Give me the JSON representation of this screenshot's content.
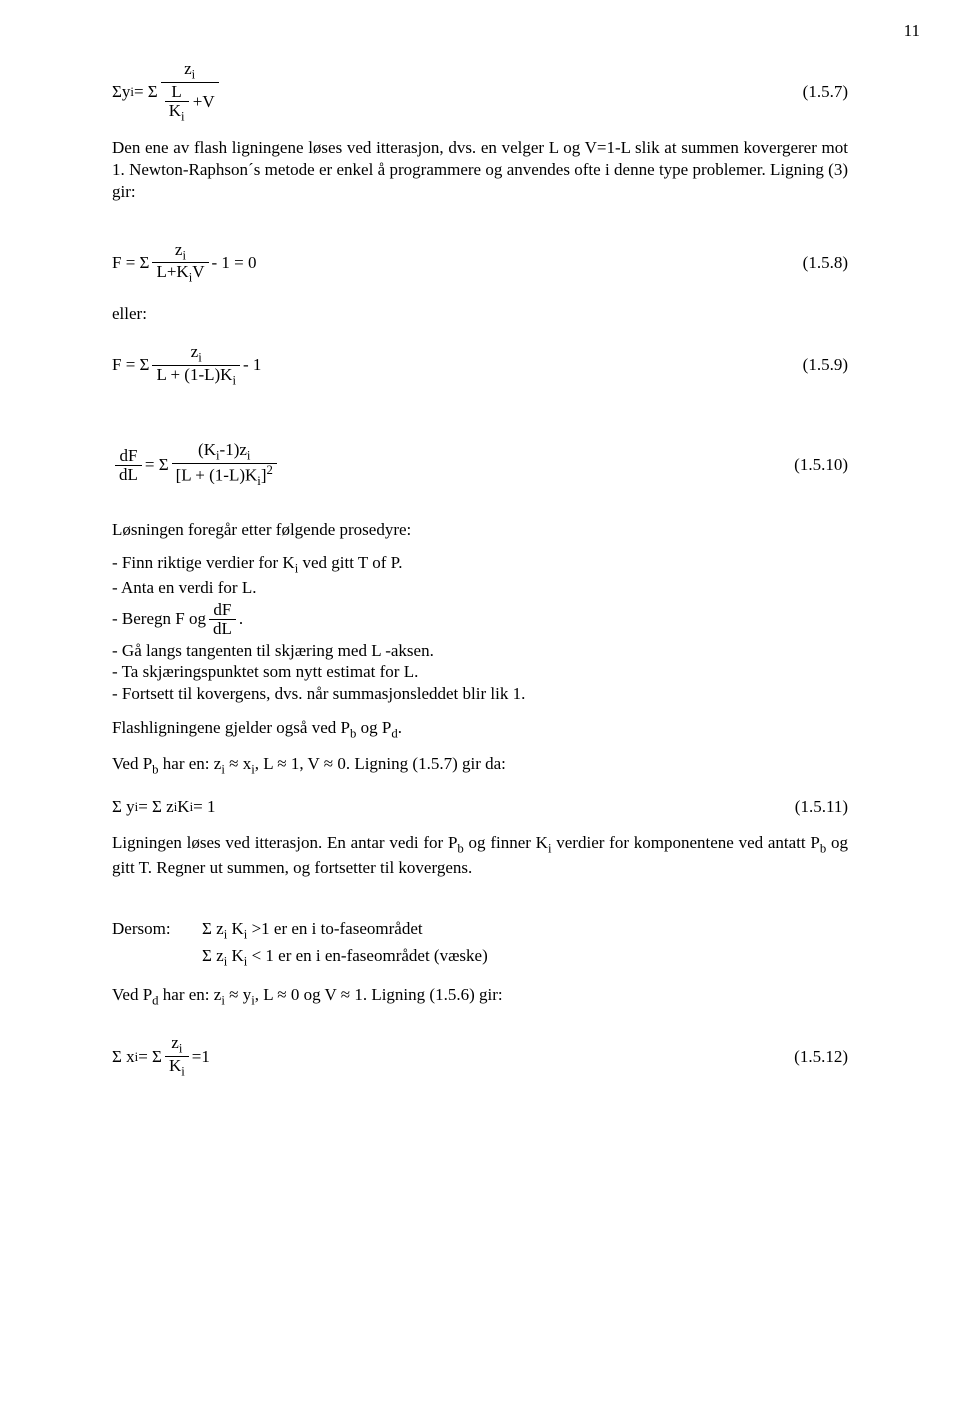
{
  "page_number": "11",
  "eq1": {
    "prefix": "Σy",
    "sub1": "i",
    "eq": " = Σ ",
    "num": "z",
    "num_sub": "i",
    "den_line1_left": "L",
    "den_line1_right": "",
    "den_line2": "K",
    "den_line2_sub": "i",
    "plusV": " +V",
    "num_label": "(1.5.7)"
  },
  "para1": "Den ene av flash ligningene løses ved itterasjon, dvs. en velger L og V=1-L slik at summen kovergerer mot 1. Newton-Raphson´s metode er enkel å programmere og anvendes ofte i denne type problemer. Ligning (3) gir:",
  "eq2": {
    "F": "F = Σ ",
    "num": "z",
    "num_sub": "i",
    "den": "L+K",
    "den_sub": "i",
    "den_tail": "V",
    "tail": "  - 1 = 0",
    "num_label": "(1.5.8)"
  },
  "eller": "eller:",
  "eq3": {
    "F": "F = Σ ",
    "num": "z",
    "num_sub": "i",
    "den": "L + (1-L)K",
    "den_sub": "i",
    "tail": "  - 1",
    "num_label": "(1.5.9)"
  },
  "eq4": {
    "lhs_num": "dF",
    "lhs_den": "dL",
    "eq": " = Σ ",
    "num_l": "(K",
    "num_sub1": "i",
    "num_mid": "-1)z",
    "num_sub2": "i",
    "den_l": "[L + (1-L)K",
    "den_sub": "i",
    "den_r": "]",
    "den_sup": "2",
    "num_label": "(1.5.10)"
  },
  "para2": "Løsningen foregår etter følgende prosedyre:",
  "bul1a": "- Finn riktige verdier for K",
  "bul1b": " ved gitt T of P.",
  "bul2": "- Anta en verdi for L.",
  "bul3a": "- Beregn F og ",
  "bul3_num": "dF",
  "bul3_den": "dL",
  "bul3b": " .",
  "bul4": "- Gå langs tangenten til skjæring med L -aksen.",
  "bul5": "- Ta skjæringspunktet som nytt estimat for L.",
  "bul6": "- Fortsett til kovergens, dvs. når summasjonsleddet blir lik 1.",
  "para3a": "Flashligningene gjelder også ved P",
  "para3b": " og P",
  "para3c": ".",
  "para4a": "Ved P",
  "para4b": " har en: z",
  "para4c": " ≈ x",
  "para4d": ", L ≈ 1, V ≈ 0. Ligning (1.5.7) gir da:",
  "eq5": {
    "text_a": "Σ y",
    "text_b": " = Σ z",
    "text_c": " K",
    "text_d": " = 1",
    "num_label": "(1.5.11)"
  },
  "para5a": "Ligningen løses ved itterasjon. En antar vedi for P",
  "para5b": " og finner K",
  "para5c": " verdier for komponentene ved antatt P",
  "para5d": " og gitt T. Regner ut summen, og fortsetter til kovergens.",
  "dersom": "Dersom:",
  "d1a": "Σ z",
  "d1b": " K",
  "d1c": " >1 er en i to-faseområdet",
  "d2a": "Σ z",
  "d2b": " K",
  "d2c": " < 1 er en i en-faseområdet (væske)",
  "para6a": "Ved P",
  "para6b": " har en: z",
  "para6c": " ≈ y",
  "para6d": ", L ≈ 0 og V ≈ 1. Ligning (1.5.6) gir:",
  "eq6": {
    "text_a": "Σ x",
    "text_b": " = Σ ",
    "num": "z",
    "num_sub": "i",
    "den": "K",
    "den_sub": "i",
    "tail": "  =1",
    "num_label": "(1.5.12)"
  },
  "i": "i",
  "b": "b",
  "d": "d"
}
